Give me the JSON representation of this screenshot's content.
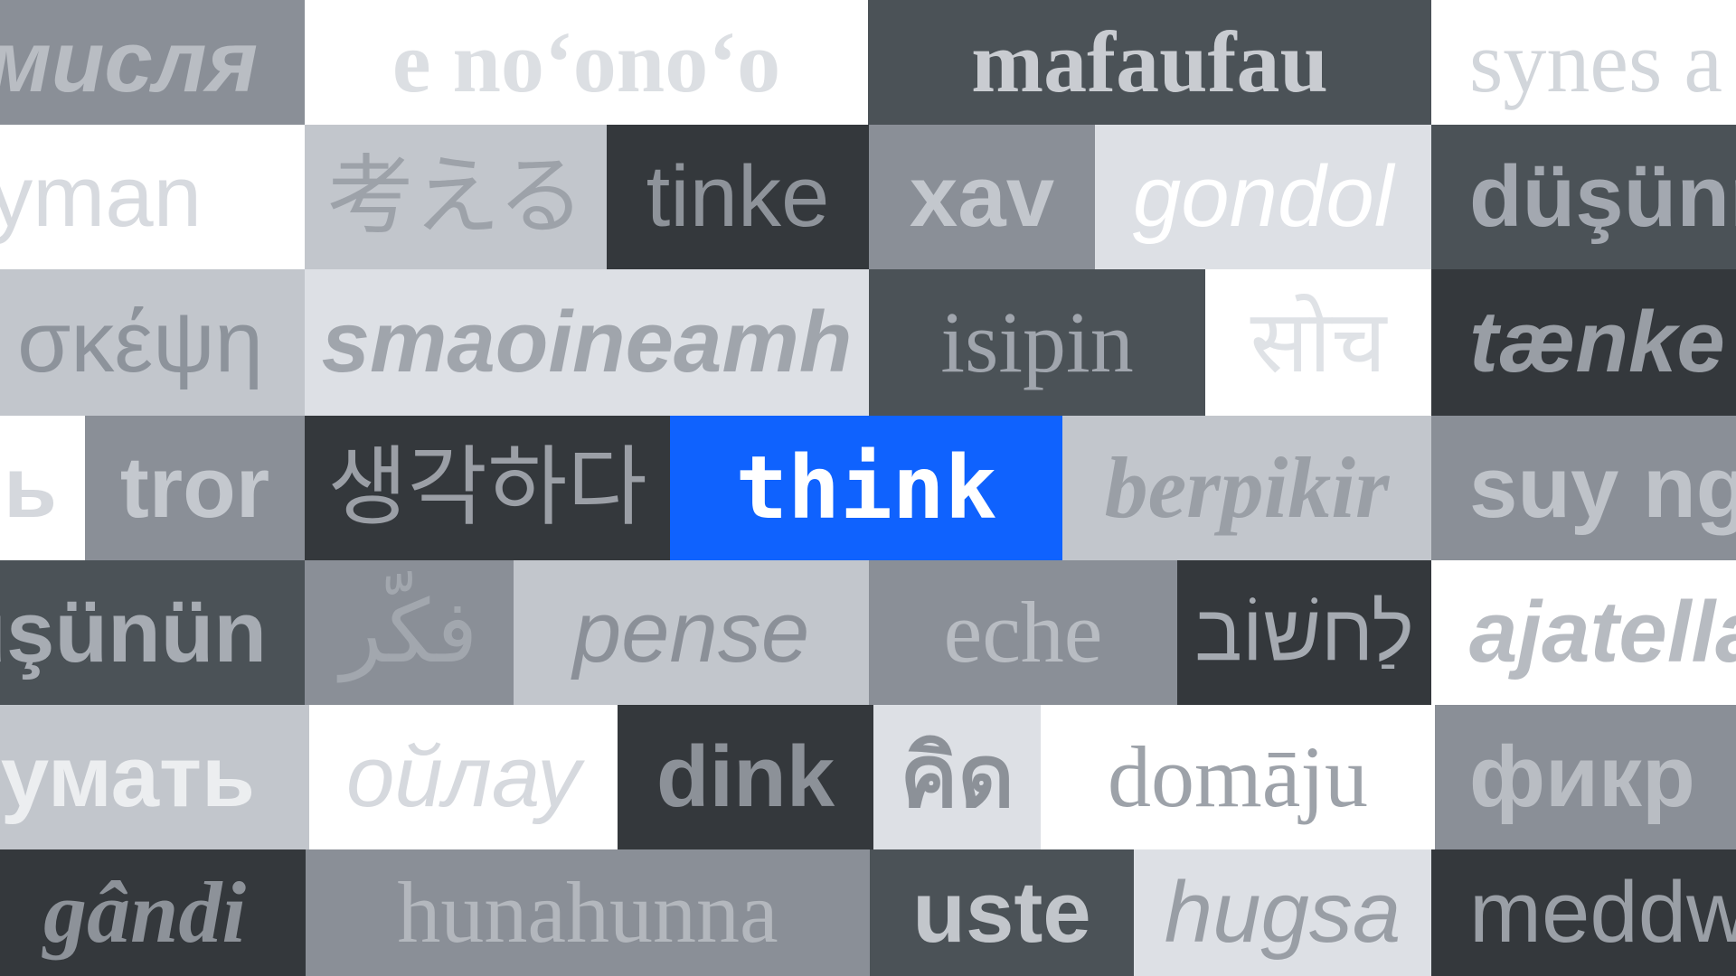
{
  "words": {
    "r1": [
      "мисля",
      "e noʻonoʻo",
      "mafaufau",
      "synes a"
    ],
    "r2": [
      "yman",
      "考える",
      "tinke",
      "xav",
      "gondol",
      "düşünm"
    ],
    "r3": [
      "σκέψη",
      "smaoineamh",
      "isipin",
      "सोच",
      "tænke"
    ],
    "r4": [
      "ь",
      "tror",
      "생각하다",
      "think",
      "berpikir",
      "suy ngh"
    ],
    "r5": [
      "üşünün",
      "فكّر",
      "pense",
      "eche",
      "לַחשׁוֹב",
      "ajatella"
    ],
    "r6": [
      "думать",
      "ойлау",
      "dink",
      "คิด",
      "domāju",
      "фикр"
    ],
    "r7": [
      "gândi",
      "hunahunna",
      "uste",
      "hugsa",
      "meddw"
    ]
  },
  "colors": {
    "accent": "#0f62fe",
    "white": "#ffffff",
    "lightest": "#dde0e5",
    "light": "#c2c6cc",
    "mid": "#8a8f97",
    "dark": "#4b5257",
    "darkest": "#34383c"
  }
}
